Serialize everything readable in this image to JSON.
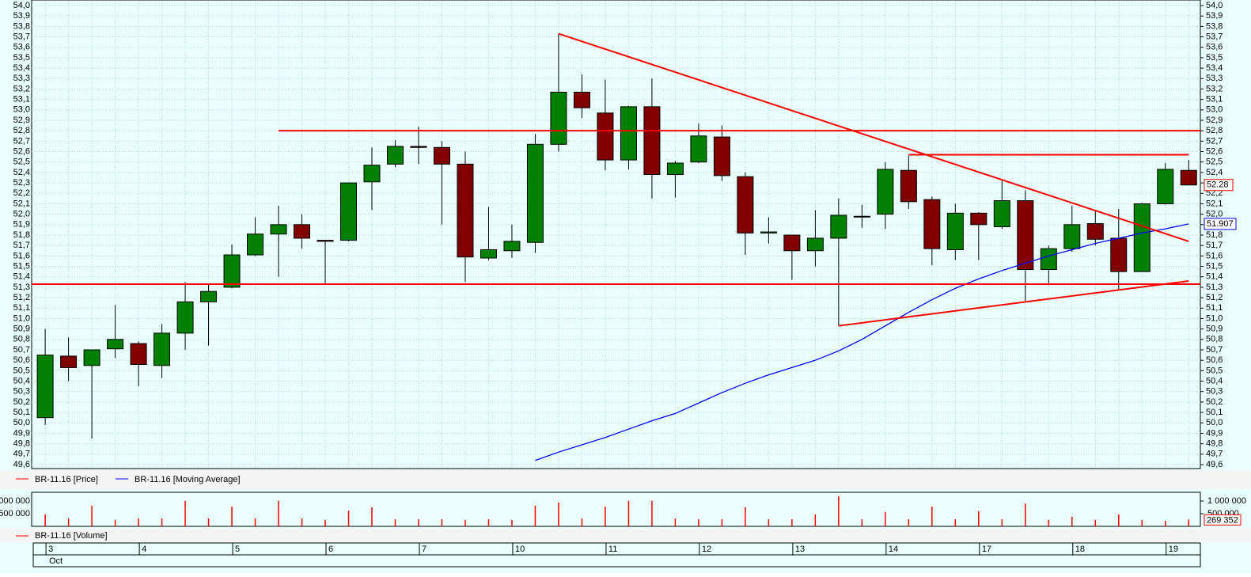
{
  "chart_data": [
    {
      "type": "candlestick",
      "categories": [
        "3",
        null,
        null,
        null,
        "4",
        null,
        null,
        null,
        "5",
        null,
        null,
        null,
        "6",
        null,
        null,
        null,
        "7",
        null,
        null,
        null,
        "10",
        null,
        null,
        null,
        "11",
        null,
        null,
        null,
        "12",
        null,
        null,
        null,
        "13",
        null,
        null,
        null,
        "14",
        null,
        null,
        null,
        "17",
        null,
        null,
        null,
        "18",
        null,
        null,
        null,
        "19",
        null
      ],
      "month_label": "Oct",
      "xlim": [
        -0.58,
        49.5
      ],
      "ylim": [
        49.6,
        54.0
      ],
      "yticks": [
        {
          "value": 49.6,
          "label": "49,6"
        },
        {
          "value": 49.7,
          "label": "49,7"
        },
        {
          "value": 49.8,
          "label": "49,8"
        },
        {
          "value": 49.9,
          "label": "49,9"
        },
        {
          "value": 50.0,
          "label": "50,0"
        },
        {
          "value": 50.1,
          "label": "50,1"
        },
        {
          "value": 50.2,
          "label": "50,2"
        },
        {
          "value": 50.3,
          "label": "50,3"
        },
        {
          "value": 50.4,
          "label": "50,4"
        },
        {
          "value": 50.5,
          "label": "50,5"
        },
        {
          "value": 50.6,
          "label": "50,6"
        },
        {
          "value": 50.7,
          "label": "50,7"
        },
        {
          "value": 50.8,
          "label": "50,8"
        },
        {
          "value": 50.9,
          "label": "50,9"
        },
        {
          "value": 51.0,
          "label": "51,0"
        },
        {
          "value": 51.1,
          "label": "51,1"
        },
        {
          "value": 51.2,
          "label": "51,2"
        },
        {
          "value": 51.3,
          "label": "51,3"
        },
        {
          "value": 51.4,
          "label": "51,4"
        },
        {
          "value": 51.5,
          "label": "51,5"
        },
        {
          "value": 51.6,
          "label": "51,6"
        },
        {
          "value": 51.7,
          "label": "51,7"
        },
        {
          "value": 51.8,
          "label": "51,8"
        },
        {
          "value": 51.9,
          "label": "51,9"
        },
        {
          "value": 52.0,
          "label": "52,0"
        },
        {
          "value": 52.1,
          "label": "52,1"
        },
        {
          "value": 52.2,
          "label": "52,2"
        },
        {
          "value": 52.3,
          "label": "52,3"
        },
        {
          "value": 52.4,
          "label": "52,4"
        },
        {
          "value": 52.5,
          "label": "52,5"
        },
        {
          "value": 52.6,
          "label": "52,6"
        },
        {
          "value": 52.7,
          "label": "52,7"
        },
        {
          "value": 52.8,
          "label": "52,8"
        },
        {
          "value": 52.9,
          "label": "52,9"
        },
        {
          "value": 53.0,
          "label": "53,0"
        },
        {
          "value": 53.1,
          "label": "53,1"
        },
        {
          "value": 53.2,
          "label": "53,2"
        },
        {
          "value": 53.3,
          "label": "53,3"
        },
        {
          "value": 53.4,
          "label": "53,4"
        },
        {
          "value": 53.5,
          "label": "53,5"
        },
        {
          "value": 53.6,
          "label": "53,6"
        },
        {
          "value": 53.7,
          "label": "53,7"
        },
        {
          "value": 53.8,
          "label": "53,8"
        },
        {
          "value": 53.9,
          "label": "53,9"
        },
        {
          "value": 54.0,
          "label": "54,0"
        }
      ],
      "grid": true,
      "series": [
        {
          "name": "BR-11.16 [Price]",
          "color": "#ff0000",
          "up_color": "#008000",
          "down_color": "#800000",
          "open": [
            50.05,
            50.64,
            50.55,
            50.71,
            50.76,
            50.55,
            50.86,
            51.16,
            51.3,
            51.61,
            51.81,
            51.9,
            51.75,
            51.75,
            52.31,
            52.48,
            52.65,
            52.64,
            52.48,
            51.58,
            51.65,
            51.73,
            52.67,
            53.17,
            52.97,
            52.52,
            53.03,
            52.38,
            52.5,
            52.74,
            52.36,
            51.82,
            51.8,
            51.65,
            51.77,
            51.98,
            52.0,
            52.42,
            52.14,
            51.66,
            52.01,
            51.88,
            52.13,
            51.47,
            51.67,
            51.91,
            51.77,
            51.45,
            52.1,
            52.42
          ],
          "high": [
            50.9,
            50.82,
            50.7,
            51.13,
            50.78,
            50.95,
            51.35,
            51.33,
            51.71,
            51.97,
            52.08,
            52.0,
            51.75,
            52.3,
            52.64,
            52.71,
            52.84,
            52.7,
            52.6,
            52.07,
            51.9,
            52.77,
            53.73,
            53.34,
            53.29,
            53.04,
            53.3,
            52.51,
            52.87,
            52.85,
            52.4,
            51.97,
            51.8,
            52.04,
            52.15,
            52.09,
            52.5,
            52.56,
            52.17,
            52.1,
            52.02,
            52.32,
            52.23,
            51.7,
            52.08,
            52.03,
            52.05,
            52.11,
            52.49,
            52.52
          ],
          "low": [
            49.98,
            50.4,
            49.85,
            50.62,
            50.35,
            50.43,
            50.7,
            50.74,
            51.29,
            51.6,
            51.4,
            51.67,
            51.33,
            51.74,
            52.04,
            52.45,
            52.48,
            51.9,
            51.35,
            51.56,
            51.58,
            51.63,
            52.6,
            52.92,
            52.42,
            52.43,
            52.15,
            52.16,
            52.49,
            52.32,
            51.61,
            51.72,
            51.37,
            51.5,
            50.93,
            51.87,
            51.86,
            52.05,
            51.51,
            51.56,
            51.56,
            51.86,
            51.17,
            51.32,
            51.64,
            51.7,
            51.27,
            51.45,
            52.09,
            52.28
          ],
          "close": [
            50.65,
            50.53,
            50.7,
            50.8,
            50.56,
            50.86,
            51.16,
            51.26,
            51.61,
            51.81,
            51.9,
            51.77,
            51.74,
            52.3,
            52.47,
            52.65,
            52.64,
            52.48,
            51.59,
            51.66,
            51.74,
            52.67,
            53.17,
            53.02,
            52.52,
            53.03,
            52.38,
            52.49,
            52.75,
            52.37,
            51.82,
            51.83,
            51.65,
            51.77,
            51.99,
            51.98,
            52.43,
            52.12,
            51.67,
            52.01,
            51.9,
            52.13,
            51.47,
            51.67,
            51.9,
            51.76,
            51.45,
            52.1,
            52.43,
            52.28
          ]
        },
        {
          "name": "BR-11.16 [Moving Average]",
          "color": "#0000ff",
          "values": [
            null,
            null,
            null,
            null,
            null,
            null,
            null,
            null,
            null,
            null,
            null,
            null,
            null,
            null,
            null,
            null,
            null,
            null,
            null,
            null,
            null,
            49.64,
            49.72,
            49.79,
            49.86,
            49.94,
            50.02,
            50.09,
            50.19,
            50.29,
            50.38,
            50.46,
            50.53,
            50.6,
            50.69,
            50.8,
            50.93,
            51.06,
            51.18,
            51.29,
            51.38,
            51.46,
            51.53,
            51.6,
            51.66,
            51.72,
            51.77,
            51.82,
            51.86,
            51.907
          ]
        }
      ],
      "trendlines": [
        {
          "color": "#ff0000",
          "x": [
            10,
            49.5
          ],
          "y": [
            52.8,
            52.8
          ]
        },
        {
          "color": "#ff0000",
          "x": [
            -0.58,
            49.5
          ],
          "y": [
            51.33,
            51.33
          ]
        },
        {
          "color": "#ff0000",
          "x": [
            22,
            49
          ],
          "y": [
            53.73,
            51.74
          ]
        },
        {
          "color": "#ff0000",
          "x": [
            37,
            49
          ],
          "y": [
            52.57,
            52.57
          ]
        },
        {
          "color": "#ff0000",
          "x": [
            34,
            49
          ],
          "y": [
            50.93,
            51.36
          ]
        }
      ]
    },
    {
      "type": "bar",
      "ylim": [
        0,
        1280000
      ],
      "yticks": [
        {
          "value": 1000000,
          "label": "1 000 000"
        },
        {
          "value": 500000,
          "label": "500 000"
        }
      ],
      "series": [
        {
          "name": "BR-11.16 [Volume]",
          "color": "#ff0000",
          "values": [
            469000,
            312000,
            812000,
            250000,
            312000,
            312000,
            1000000,
            312000,
            781000,
            312000,
            1000000,
            312000,
            250000,
            625000,
            750000,
            281000,
            281000,
            281000,
            250000,
            281000,
            250000,
            812000,
            937000,
            312000,
            781000,
            1000000,
            1000000,
            312000,
            281000,
            281000,
            750000,
            281000,
            281000,
            469000,
            1188000,
            281000,
            562000,
            281000,
            781000,
            281000,
            594000,
            281000,
            906000,
            250000,
            375000,
            250000,
            469000,
            250000,
            219000,
            269352
          ],
          "value_labels": [
            null,
            null,
            null,
            null,
            null,
            null,
            null,
            null,
            null,
            null,
            null,
            null,
            null,
            null,
            null,
            null,
            null,
            null,
            null,
            null,
            null,
            null,
            null,
            null,
            null,
            null,
            null,
            null,
            null,
            null,
            null,
            null,
            null,
            null,
            null,
            null,
            null,
            null,
            null,
            null,
            null,
            null,
            null,
            null,
            null,
            null,
            null,
            null,
            null,
            "269 352"
          ]
        }
      ]
    }
  ]
}
